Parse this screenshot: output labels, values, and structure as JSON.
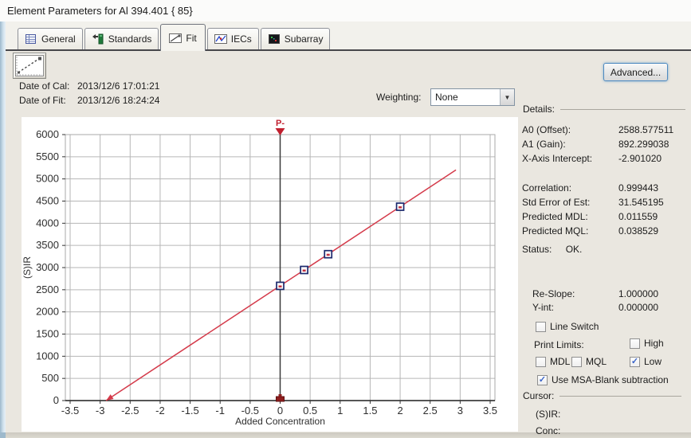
{
  "window": {
    "title": "Element Parameters for Al 394.401 { 85}"
  },
  "tabs": [
    {
      "label": "General",
      "icon": "general-tab-icon",
      "active": false
    },
    {
      "label": "Standards",
      "icon": "standards-tab-icon",
      "active": false
    },
    {
      "label": "Fit",
      "icon": "fit-tab-icon",
      "active": true
    },
    {
      "label": "IECs",
      "icon": "iecs-tab-icon",
      "active": false
    },
    {
      "label": "Subarray",
      "icon": "subarray-tab-icon",
      "active": false
    }
  ],
  "toolbar": {
    "advanced_label": "Advanced...",
    "curve_button_icon": "calibration-curve-icon"
  },
  "icons": {
    "dropdown_arrow": "▼",
    "check_glyph": "✓"
  },
  "info": {
    "date_of_cal_label": "Date of Cal:",
    "date_of_cal": "2013/12/6 17:01:21",
    "date_of_fit_label": "Date of Fit:",
    "date_of_fit": "2013/12/6 18:24:24",
    "weighting_label": "Weighting:",
    "weighting_value": "None"
  },
  "details": {
    "section_label": "Details:",
    "rows_top": [
      {
        "label": "A0 (Offset):",
        "value": "2588.577511"
      },
      {
        "label": "A1 (Gain):",
        "value": "892.299038"
      },
      {
        "label": "X-Axis Intercept:",
        "value": "-2.901020"
      }
    ],
    "rows_mid": [
      {
        "label": "Correlation:",
        "value": "0.999443"
      },
      {
        "label": "Std Error of Est:",
        "value": "31.545195"
      },
      {
        "label": "Predicted MDL:",
        "value": "0.011559"
      },
      {
        "label": "Predicted MQL:",
        "value": "0.038529"
      }
    ],
    "status_label": "Status:",
    "status_value": "OK.",
    "reslope_label": "Re-Slope:",
    "reslope_value": "1.000000",
    "yint_label": "Y-int:",
    "yint_value": "0.000000",
    "line_switch": {
      "label": "Line Switch",
      "checked": false
    },
    "print_limits_label": "Print Limits:",
    "high": {
      "label": "High",
      "checked": false
    },
    "mdl": {
      "label": "MDL",
      "checked": false
    },
    "mql": {
      "label": "MQL",
      "checked": false
    },
    "low": {
      "label": "Low",
      "checked": true
    },
    "msa": {
      "label": "Use MSA-Blank subtraction",
      "checked": true
    },
    "cursor_label": "Cursor:",
    "sir_label": "(S)IR:",
    "conc_label": "Conc:"
  },
  "chart_data": {
    "type": "scatter",
    "title": "",
    "xlabel": "Added Concentration",
    "ylabel": "(S)IR",
    "xlim": [
      -3.5,
      3.5
    ],
    "ylim": [
      0,
      6000
    ],
    "x_ticks": [
      -3.5,
      -3,
      -2.5,
      -2,
      -1.5,
      -1,
      -0.5,
      0,
      0.5,
      1,
      1.5,
      2,
      2.5,
      3,
      3.5
    ],
    "y_ticks": [
      0,
      500,
      1000,
      1500,
      2000,
      2500,
      3000,
      3500,
      4000,
      4500,
      5000,
      5500,
      6000
    ],
    "grid": true,
    "points": [
      [
        0,
        2588
      ],
      [
        0.4,
        2946
      ],
      [
        0.8,
        3302
      ],
      [
        2,
        4373
      ]
    ],
    "point_color": "#1c2a6e",
    "point_inner_color": "#c03040",
    "fit_line": {
      "a0": 2588.577511,
      "a1": 892.299038,
      "x_start": -2.90102,
      "x_end": 2.93,
      "color": "#d43a4a"
    },
    "vertical_marker": {
      "x": 0,
      "label": "P-",
      "color": "#c11f2e",
      "line_color": "#3a3a3a"
    },
    "blank_marker": {
      "x": 0,
      "y": 0,
      "color": "#8f1d1d"
    },
    "grid_color": "#b6b6b6"
  }
}
